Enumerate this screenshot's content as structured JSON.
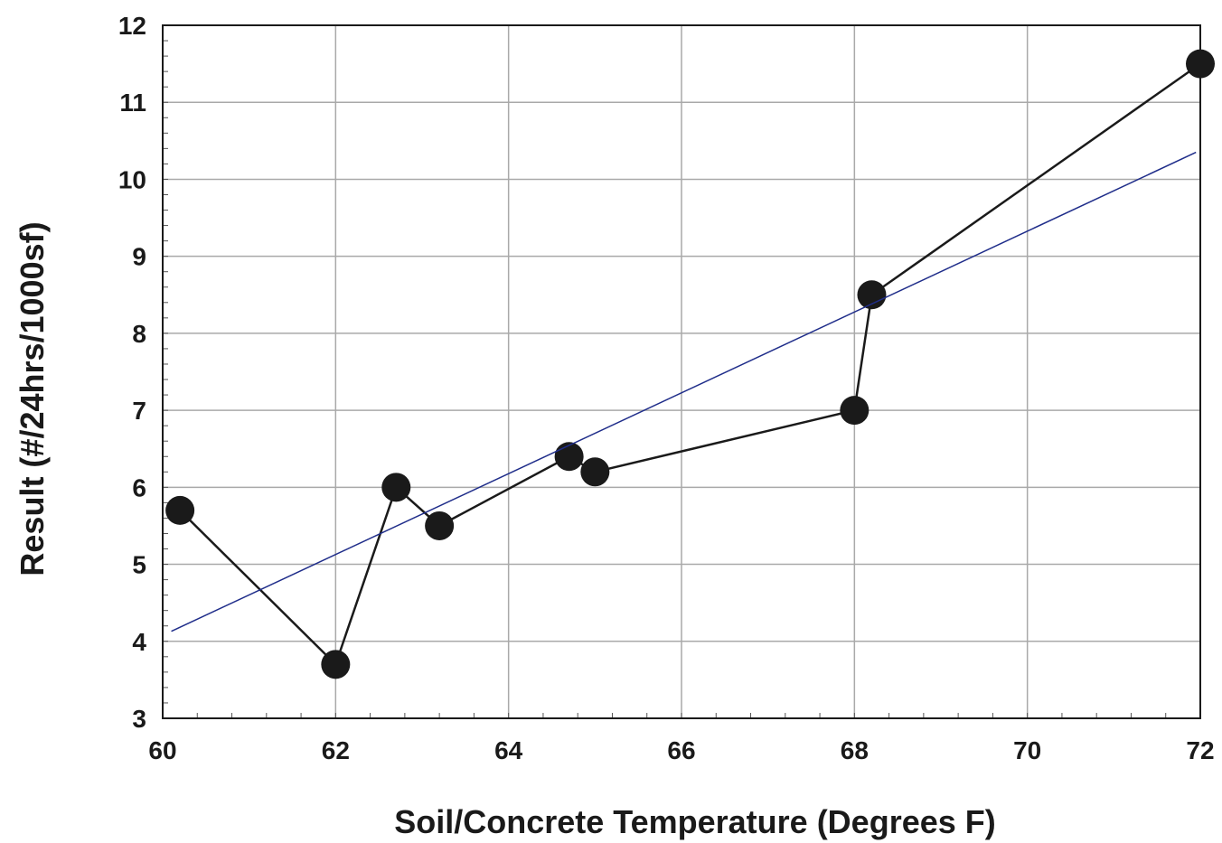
{
  "chart_data": {
    "type": "scatter",
    "title": "",
    "xlabel": "Soil/Concrete Temperature (Degrees F)",
    "ylabel": "Result (#/24hrs/1000sf)",
    "xlim": [
      60,
      72
    ],
    "ylim": [
      3,
      12
    ],
    "x_ticks": [
      "60",
      "62",
      "64",
      "66",
      "68",
      "70",
      "72"
    ],
    "y_ticks": [
      "3",
      "4",
      "5",
      "6",
      "7",
      "8",
      "9",
      "10",
      "11",
      "12"
    ],
    "grid": true,
    "series": [
      {
        "style": "line-with-markers",
        "color": "#1a1a1a",
        "points": [
          {
            "x": 60.2,
            "y": 5.7
          },
          {
            "x": 62.0,
            "y": 3.7
          },
          {
            "x": 62.7,
            "y": 6.0
          },
          {
            "x": 63.2,
            "y": 5.5
          },
          {
            "x": 64.7,
            "y": 6.4
          },
          {
            "x": 65.0,
            "y": 6.2
          },
          {
            "x": 68.0,
            "y": 7.0
          },
          {
            "x": 68.2,
            "y": 8.5
          },
          {
            "x": 72.0,
            "y": 11.5
          }
        ]
      },
      {
        "style": "trendline",
        "color": "#1f2d8a",
        "points": [
          {
            "x": 60.1,
            "y": 4.13
          },
          {
            "x": 71.95,
            "y": 10.35
          }
        ]
      }
    ]
  }
}
